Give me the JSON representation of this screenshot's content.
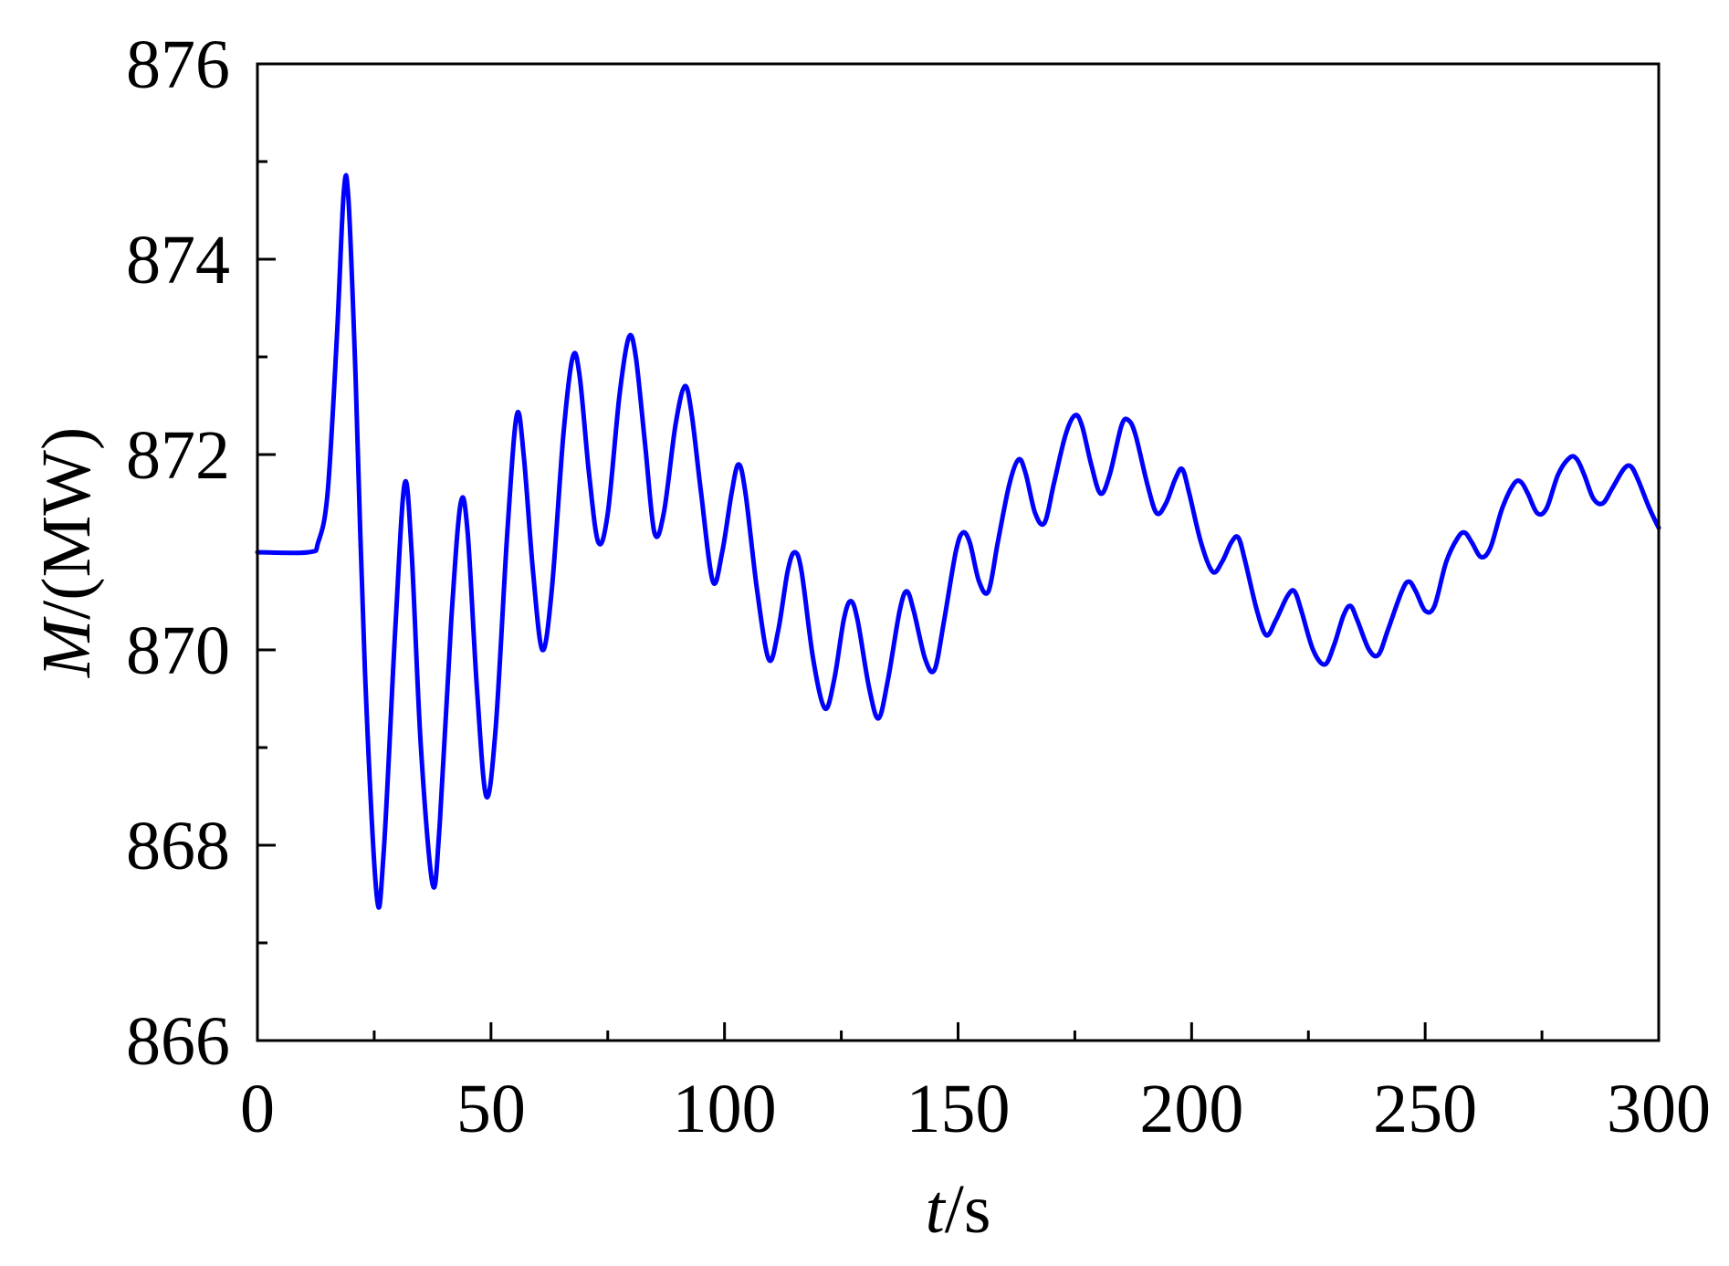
{
  "chart_data": {
    "type": "line",
    "title": "",
    "xlabel": {
      "italic": "t",
      "rest": "/s"
    },
    "ylabel": {
      "italic": "M",
      "rest": "/(MW)"
    },
    "xlim": [
      0,
      300
    ],
    "ylim": [
      866,
      876
    ],
    "xticks": [
      0,
      50,
      100,
      150,
      200,
      250,
      300
    ],
    "yticks": [
      866,
      868,
      870,
      872,
      874,
      876
    ],
    "xminor": [
      25,
      75,
      125,
      175,
      225,
      275
    ],
    "yminor": [
      867,
      869,
      871,
      873,
      875
    ],
    "grid": false,
    "legend": "none",
    "line_color": "#0000ff",
    "series": [
      {
        "points": [
          [
            0,
            871.0
          ],
          [
            11,
            871.0
          ],
          [
            13,
            871.1
          ],
          [
            15,
            871.6
          ],
          [
            17,
            873.2
          ],
          [
            18.5,
            874.7
          ],
          [
            19.5,
            874.6
          ],
          [
            21,
            872.8
          ],
          [
            23,
            869.8
          ],
          [
            25.5,
            867.5
          ],
          [
            27,
            867.9
          ],
          [
            29.5,
            870.2
          ],
          [
            31.5,
            871.7
          ],
          [
            33,
            871.0
          ],
          [
            35,
            869.0
          ],
          [
            37.5,
            867.6
          ],
          [
            39,
            868.2
          ],
          [
            41.5,
            870.3
          ],
          [
            43.5,
            871.5
          ],
          [
            45,
            871.2
          ],
          [
            47,
            869.6
          ],
          [
            49,
            868.5
          ],
          [
            51,
            869.2
          ],
          [
            53.5,
            871.2
          ],
          [
            55.5,
            872.4
          ],
          [
            57,
            872.0
          ],
          [
            59,
            870.8
          ],
          [
            61,
            870.0
          ],
          [
            63,
            870.6
          ],
          [
            65.5,
            872.2
          ],
          [
            67.5,
            873.0
          ],
          [
            69,
            872.8
          ],
          [
            71,
            871.8
          ],
          [
            73,
            871.1
          ],
          [
            75,
            871.4
          ],
          [
            77.5,
            872.6
          ],
          [
            79.5,
            873.2
          ],
          [
            81,
            873.0
          ],
          [
            83,
            872.1
          ],
          [
            85,
            871.2
          ],
          [
            87,
            871.4
          ],
          [
            89.5,
            872.3
          ],
          [
            91.5,
            872.7
          ],
          [
            93,
            872.4
          ],
          [
            95,
            871.6
          ],
          [
            97.5,
            870.7
          ],
          [
            99.5,
            871.0
          ],
          [
            101.5,
            871.6
          ],
          [
            103,
            871.9
          ],
          [
            104.5,
            871.6
          ],
          [
            107,
            870.6
          ],
          [
            109.5,
            869.9
          ],
          [
            111.5,
            870.2
          ],
          [
            113.5,
            870.8
          ],
          [
            115,
            871.0
          ],
          [
            116.5,
            870.8
          ],
          [
            119,
            869.9
          ],
          [
            121.5,
            869.4
          ],
          [
            123.5,
            869.7
          ],
          [
            125.5,
            870.3
          ],
          [
            127,
            870.5
          ],
          [
            128.5,
            870.3
          ],
          [
            131,
            869.6
          ],
          [
            133,
            869.3
          ],
          [
            135,
            869.7
          ],
          [
            137.5,
            870.4
          ],
          [
            139,
            870.6
          ],
          [
            140.5,
            870.4
          ],
          [
            143,
            869.9
          ],
          [
            145,
            869.8
          ],
          [
            147,
            870.3
          ],
          [
            149.5,
            871.0
          ],
          [
            151,
            871.2
          ],
          [
            152.5,
            871.1
          ],
          [
            154.5,
            870.7
          ],
          [
            156.5,
            870.6
          ],
          [
            158.5,
            871.1
          ],
          [
            161,
            871.7
          ],
          [
            163,
            871.95
          ],
          [
            164.5,
            871.8
          ],
          [
            166.5,
            871.4
          ],
          [
            168.5,
            871.3
          ],
          [
            170.5,
            871.7
          ],
          [
            173,
            872.2
          ],
          [
            175,
            872.4
          ],
          [
            176.5,
            872.3
          ],
          [
            178.5,
            871.9
          ],
          [
            180.5,
            871.6
          ],
          [
            182.5,
            871.8
          ],
          [
            185,
            872.3
          ],
          [
            186.5,
            872.35
          ],
          [
            188,
            872.2
          ],
          [
            190.5,
            871.7
          ],
          [
            192.5,
            871.4
          ],
          [
            194.5,
            871.5
          ],
          [
            196.5,
            871.75
          ],
          [
            198,
            871.85
          ],
          [
            199.5,
            871.6
          ],
          [
            202,
            871.1
          ],
          [
            204.5,
            870.8
          ],
          [
            206.5,
            870.9
          ],
          [
            208.5,
            871.1
          ],
          [
            210,
            871.15
          ],
          [
            211.5,
            870.9
          ],
          [
            214,
            870.4
          ],
          [
            216,
            870.15
          ],
          [
            218,
            870.3
          ],
          [
            220.5,
            870.55
          ],
          [
            222,
            870.6
          ],
          [
            223.5,
            870.4
          ],
          [
            226,
            870.0
          ],
          [
            228.5,
            869.85
          ],
          [
            230.5,
            870.05
          ],
          [
            232.5,
            870.35
          ],
          [
            234,
            870.45
          ],
          [
            235.5,
            870.3
          ],
          [
            238,
            870.0
          ],
          [
            240,
            869.95
          ],
          [
            242,
            870.2
          ],
          [
            245,
            870.6
          ],
          [
            246.5,
            870.7
          ],
          [
            248,
            870.6
          ],
          [
            250,
            870.4
          ],
          [
            252,
            870.45
          ],
          [
            254.5,
            870.9
          ],
          [
            257,
            871.15
          ],
          [
            258.5,
            871.2
          ],
          [
            260,
            871.1
          ],
          [
            262,
            870.95
          ],
          [
            264,
            871.05
          ],
          [
            266.5,
            871.45
          ],
          [
            269,
            871.7
          ],
          [
            270.5,
            871.72
          ],
          [
            272,
            871.6
          ],
          [
            274,
            871.4
          ],
          [
            276,
            871.45
          ],
          [
            278.5,
            871.8
          ],
          [
            281,
            871.97
          ],
          [
            282.5,
            871.95
          ],
          [
            284,
            871.8
          ],
          [
            286,
            871.55
          ],
          [
            288,
            871.5
          ],
          [
            290,
            871.65
          ],
          [
            292.5,
            871.85
          ],
          [
            294,
            871.88
          ],
          [
            295.5,
            871.75
          ],
          [
            298,
            871.45
          ],
          [
            300,
            871.25
          ]
        ]
      }
    ]
  }
}
